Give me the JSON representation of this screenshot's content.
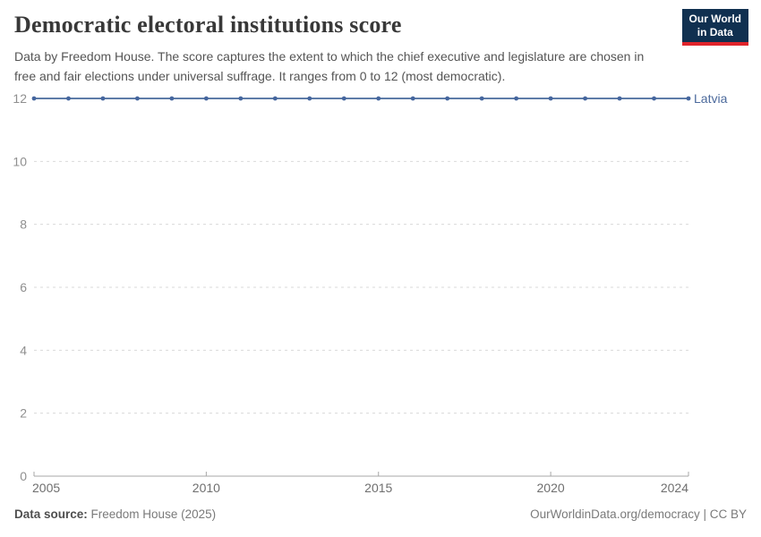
{
  "header": {
    "title": "Democratic electoral institutions score",
    "subtitle": "Data by Freedom House. The score captures the extent to which the chief executive and legislature are chosen in free and fair elections under universal suffrage. It ranges from 0 to 12 (most democratic).",
    "logo": {
      "line1": "Our World",
      "line2": "in Data",
      "bg_color": "#103050",
      "accent_color": "#e0242b"
    }
  },
  "chart_data": {
    "type": "line",
    "title": "Democratic electoral institutions score",
    "x": [
      2005,
      2006,
      2007,
      2008,
      2009,
      2010,
      2011,
      2012,
      2013,
      2014,
      2015,
      2016,
      2017,
      2018,
      2019,
      2020,
      2021,
      2022,
      2023,
      2024
    ],
    "series": [
      {
        "name": "Latvia",
        "values": [
          12,
          12,
          12,
          12,
          12,
          12,
          12,
          12,
          12,
          12,
          12,
          12,
          12,
          12,
          12,
          12,
          12,
          12,
          12,
          12
        ],
        "line_color": "#5d7ca8",
        "marker_color": "#45669e",
        "label_color": "#4c6a9c"
      }
    ],
    "xlim": [
      2005,
      2024
    ],
    "ylim": [
      0,
      12
    ],
    "x_ticks": [
      2005,
      2010,
      2015,
      2020,
      2024
    ],
    "y_ticks": [
      0,
      2,
      4,
      6,
      8,
      10,
      12
    ],
    "grid": "horizontal-dashed",
    "grid_color": "#d9d9d9",
    "axis_color": "#a7a7a7",
    "legend": "end-of-line-label"
  },
  "footer": {
    "source_label": "Data source:",
    "source_value": " Freedom House (2025)",
    "right_text": "OurWorldinData.org/democracy | CC BY"
  }
}
